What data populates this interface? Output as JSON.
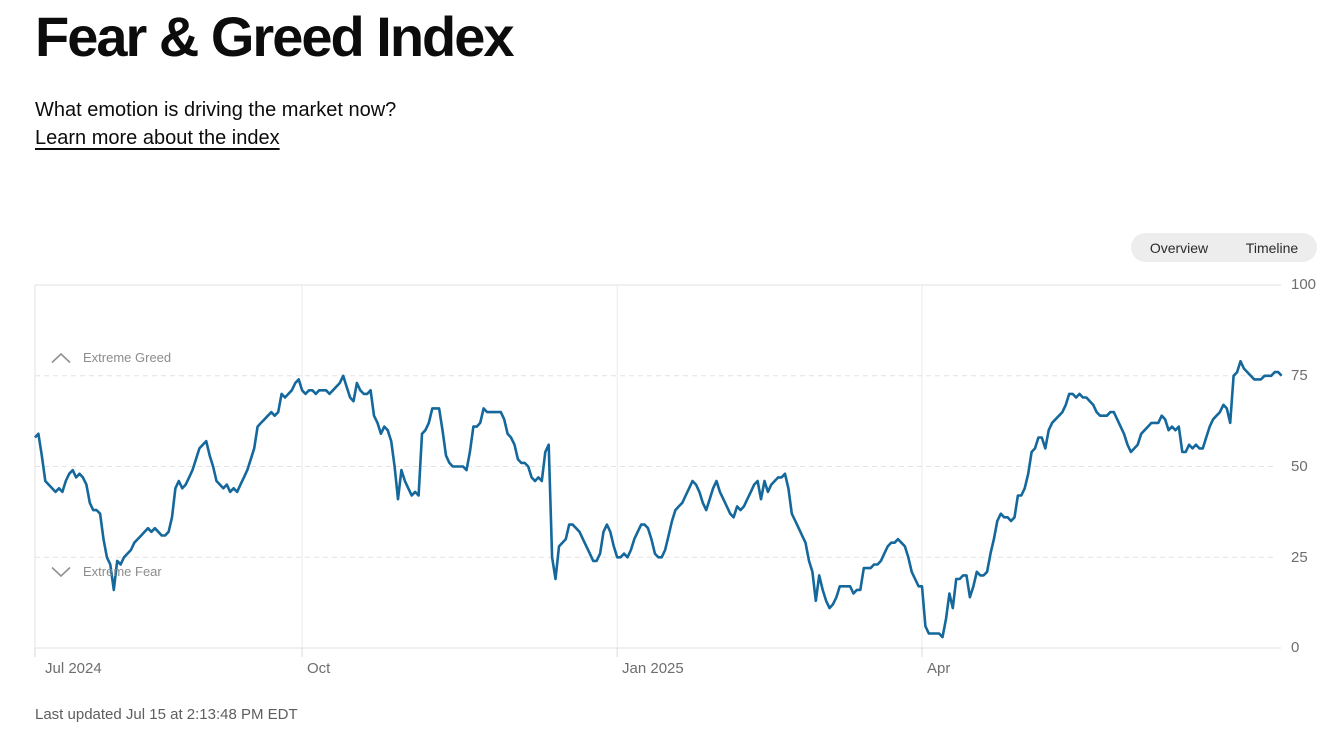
{
  "header": {
    "title": "Fear & Greed Index",
    "subtitle": "What emotion is driving the market now?",
    "learn_more_label": "Learn more about the index"
  },
  "toggle": {
    "options": [
      "Overview",
      "Timeline"
    ],
    "selected": "Timeline"
  },
  "chart_data": {
    "type": "line",
    "series_name": "Fear & Greed Index",
    "ylim": [
      0,
      100
    ],
    "y_ticks": [
      100,
      75,
      50,
      25,
      0
    ],
    "x_total_days": 365,
    "x_ticks": [
      {
        "label": "Jul 2024",
        "day": 0,
        "gridline": false
      },
      {
        "label": "Oct",
        "day": 78,
        "gridline": true
      },
      {
        "label": "Jan 2025",
        "day": 170,
        "gridline": true
      },
      {
        "label": "Apr",
        "day": 259,
        "gridline": true
      }
    ],
    "thresholds": {
      "greed": {
        "label": "Extreme Greed",
        "value": 75
      },
      "fear": {
        "label": "Extreme Fear",
        "value": 25
      }
    },
    "legend_position": "none",
    "grid": true,
    "values": [
      58,
      59,
      53,
      46,
      45,
      44,
      43,
      44,
      43,
      46,
      48,
      49,
      47,
      48,
      47,
      45,
      40,
      38,
      38,
      37,
      30,
      25,
      23,
      16,
      24,
      23,
      25,
      26,
      27,
      29,
      30,
      31,
      32,
      33,
      32,
      33,
      32,
      31,
      31,
      32,
      36,
      44,
      46,
      44,
      45,
      47,
      49,
      52,
      55,
      56,
      57,
      53,
      50,
      46,
      45,
      44,
      45,
      43,
      44,
      43,
      45,
      47,
      49,
      52,
      55,
      61,
      62,
      63,
      64,
      65,
      64,
      65,
      70,
      69,
      70,
      71,
      73,
      74,
      71,
      70,
      71,
      71,
      70,
      71,
      71,
      71,
      70,
      71,
      72,
      73,
      75,
      72,
      69,
      68,
      73,
      71,
      70,
      70,
      71,
      64,
      62,
      59,
      61,
      60,
      57,
      50,
      41,
      49,
      46,
      44,
      42,
      43,
      42,
      59,
      60,
      62,
      66,
      66,
      66,
      60,
      53,
      51,
      50,
      50,
      50,
      50,
      49,
      54,
      61,
      61,
      62,
      66,
      65,
      65,
      65,
      65,
      65,
      63,
      59,
      58,
      56,
      52,
      51,
      51,
      50,
      47,
      46,
      47,
      46,
      54,
      56,
      25,
      19,
      28,
      29,
      30,
      34,
      34,
      33,
      32,
      30,
      28,
      26,
      24,
      24,
      26,
      32,
      34,
      32,
      28,
      25,
      25,
      26,
      25,
      27,
      30,
      32,
      34,
      34,
      33,
      30,
      26,
      25,
      25,
      27,
      31,
      35,
      38,
      39,
      40,
      42,
      44,
      46,
      45,
      43,
      40,
      38,
      41,
      44,
      46,
      43,
      41,
      39,
      37,
      36,
      39,
      38,
      39,
      41,
      43,
      45,
      46,
      41,
      46,
      43,
      45,
      46,
      47,
      47,
      48,
      44,
      37,
      35,
      33,
      31,
      29,
      24,
      21,
      13,
      20,
      16,
      13,
      11,
      12,
      14,
      17,
      17,
      17,
      17,
      15,
      16,
      16,
      22,
      22,
      22,
      23,
      23,
      24,
      26,
      28,
      29,
      29,
      30,
      29,
      28,
      25,
      21,
      19,
      17,
      17,
      6,
      4,
      4,
      4,
      4,
      3,
      8,
      15,
      11,
      19,
      19,
      20,
      20,
      14,
      17,
      21,
      20,
      20,
      21,
      26,
      30,
      35,
      37,
      36,
      36,
      35,
      36,
      42,
      42,
      44,
      48,
      54,
      55,
      58,
      58,
      55,
      60,
      62,
      63,
      64,
      65,
      67,
      70,
      70,
      69,
      70,
      69,
      69,
      68,
      67,
      65,
      64,
      64,
      64,
      65,
      65,
      63,
      61,
      59,
      56,
      54,
      55,
      56,
      59,
      60,
      61,
      62,
      62,
      62,
      64,
      63,
      60,
      61,
      60,
      61,
      54,
      54,
      56,
      55,
      56,
      55,
      55,
      58,
      61,
      63,
      64,
      65,
      67,
      66,
      62,
      75,
      76,
      79,
      77,
      76,
      75,
      74,
      74,
      74,
      75,
      75,
      75,
      76,
      76,
      75
    ]
  },
  "footer": {
    "last_updated": "Last updated Jul 15 at 2:13:48 PM EDT"
  },
  "colors": {
    "line": "#14689C",
    "grid_solid": "#E0E0E0",
    "grid_dashed": "#E3E3E3",
    "grid_vertical": "#EBEBEB",
    "tick": "#D9D9D9",
    "axis_label": "#6E6E6E",
    "threshold_label": "#8C8C8C",
    "chevron": "#919191",
    "toggle_bg": "#EDEDED",
    "toggle_active_bg": "#FFFFFF",
    "toggle_active_border": "#D9D9D9",
    "text": "#0C0C0C",
    "footer_text": "#5E5E5E"
  }
}
